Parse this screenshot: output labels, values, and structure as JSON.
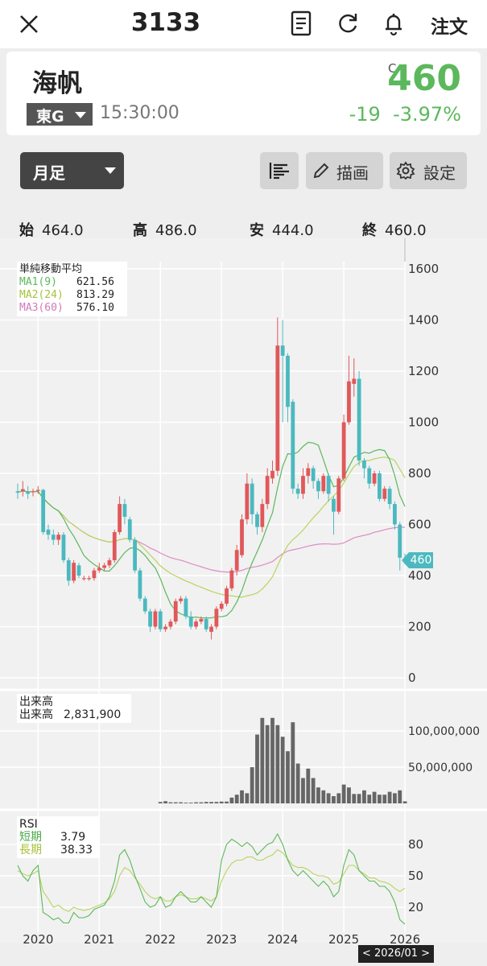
{
  "header": {
    "title": "3133",
    "order_label": "注文"
  },
  "stock": {
    "name": "海帆",
    "exchange": "東G",
    "time": "15:30:00",
    "c_mark": "C",
    "price": "460",
    "change": "-19",
    "change_pct": "-3.97%"
  },
  "toolbar": {
    "period": "月足",
    "draw_label": "描画",
    "settings_label": "設定"
  },
  "ohlc": {
    "open_label": "始",
    "open": "464.0",
    "high_label": "高",
    "high": "486.0",
    "low_label": "安",
    "low": "444.0",
    "close_label": "終",
    "close": "460.0"
  },
  "colors": {
    "up": "#e0585a",
    "down": "#4bb9bf",
    "ma1": "#5cb85c",
    "ma2": "#b8d45e",
    "ma3": "#e08ac6",
    "price": "#5cb85c"
  },
  "price_chart": {
    "legend_title": "単純移動平均",
    "ma1_label": "MA1(9)",
    "ma1_value": "621.56",
    "ma2_label": "MA2(24)",
    "ma2_value": "813.29",
    "ma3_label": "MA3(60)",
    "ma3_value": "576.10",
    "y_ticks": [
      "1600",
      "1400",
      "1200",
      "1000",
      "800",
      "600",
      "400",
      "200",
      "0"
    ],
    "price_tag": "460"
  },
  "volume_chart": {
    "legend_title": "出来高",
    "legend_label": "出来高",
    "legend_value": "2,831,900",
    "y_ticks": [
      "100,000,000",
      "50,000,000"
    ]
  },
  "rsi_chart": {
    "legend_title": "RSI",
    "short_label": "短期",
    "short_value": "3.79",
    "long_label": "長期",
    "long_value": "38.33",
    "y_ticks": [
      "80",
      "50",
      "20"
    ]
  },
  "x_axis": {
    "labels": [
      "2020",
      "2021",
      "2022",
      "2023",
      "2024",
      "2025",
      "2026"
    ],
    "cursor_label": "< 2026/01 >"
  },
  "chart_data": [
    {
      "type": "candlestick",
      "title": "単純移動平均",
      "ylim": [
        0,
        1600
      ],
      "x": [
        "2019-09",
        "2019-10",
        "2019-11",
        "2019-12",
        "2020-01",
        "2020-02",
        "2020-03",
        "2020-04",
        "2020-05",
        "2020-06",
        "2020-07",
        "2020-08",
        "2020-09",
        "2020-10",
        "2020-11",
        "2020-12",
        "2021-01",
        "2021-02",
        "2021-03",
        "2021-04",
        "2021-05",
        "2021-06",
        "2021-07",
        "2021-08",
        "2021-09",
        "2021-10",
        "2021-11",
        "2021-12",
        "2022-01",
        "2022-02",
        "2022-03",
        "2022-04",
        "2022-05",
        "2022-06",
        "2022-07",
        "2022-08",
        "2022-09",
        "2022-10",
        "2022-11",
        "2022-12",
        "2023-01",
        "2023-02",
        "2023-03",
        "2023-04",
        "2023-05",
        "2023-06",
        "2023-07",
        "2023-08",
        "2023-09",
        "2023-10",
        "2023-11",
        "2023-12",
        "2024-01",
        "2024-02",
        "2024-03",
        "2024-04",
        "2024-05",
        "2024-06",
        "2024-07",
        "2024-08",
        "2024-09",
        "2024-10",
        "2024-11",
        "2024-12",
        "2025-01",
        "2025-02",
        "2025-03",
        "2025-04",
        "2025-05",
        "2025-06",
        "2025-07",
        "2025-08",
        "2025-09",
        "2025-10",
        "2025-11",
        "2025-12",
        "2026-01"
      ],
      "open": [
        730,
        730,
        728,
        728,
        735,
        735,
        580,
        560,
        540,
        560,
        460,
        380,
        440,
        390,
        390,
        390,
        420,
        430,
        440,
        460,
        570,
        680,
        620,
        540,
        420,
        310,
        260,
        200,
        260,
        190,
        200,
        220,
        300,
        310,
        240,
        200,
        220,
        230,
        180,
        200,
        270,
        290,
        350,
        420,
        480,
        620,
        760,
        640,
        590,
        680,
        780,
        810,
        1300,
        1260,
        1080,
        740,
        720,
        790,
        820,
        770,
        730,
        790,
        700,
        650,
        780,
        1000,
        1150,
        1170,
        850,
        820,
        760,
        800,
        700,
        740,
        680,
        600,
        464
      ],
      "close": [
        725,
        738,
        720,
        730,
        735,
        570,
        560,
        540,
        560,
        460,
        380,
        450,
        400,
        390,
        390,
        420,
        430,
        440,
        460,
        570,
        680,
        630,
        540,
        420,
        310,
        260,
        200,
        260,
        190,
        200,
        220,
        300,
        310,
        240,
        200,
        220,
        230,
        190,
        200,
        270,
        290,
        350,
        420,
        500,
        620,
        760,
        640,
        590,
        680,
        790,
        810,
        1300,
        1260,
        1060,
        740,
        720,
        790,
        820,
        770,
        730,
        790,
        720,
        650,
        780,
        1000,
        1160,
        1170,
        850,
        820,
        760,
        800,
        700,
        740,
        680,
        600,
        470,
        460
      ],
      "high": [
        760,
        770,
        750,
        740,
        750,
        740,
        600,
        580,
        570,
        570,
        470,
        460,
        450,
        400,
        400,
        430,
        450,
        450,
        470,
        580,
        710,
        700,
        630,
        550,
        430,
        320,
        270,
        270,
        270,
        210,
        230,
        310,
        320,
        320,
        260,
        230,
        240,
        240,
        210,
        280,
        300,
        360,
        430,
        520,
        640,
        800,
        780,
        650,
        700,
        820,
        850,
        1410,
        1400,
        1270,
        1090,
        760,
        820,
        840,
        830,
        780,
        800,
        800,
        710,
        790,
        1030,
        1260,
        1250,
        1200,
        860,
        830,
        810,
        810,
        750,
        750,
        690,
        610,
        486
      ],
      "low": [
        700,
        710,
        700,
        710,
        720,
        560,
        540,
        520,
        520,
        450,
        360,
        370,
        390,
        380,
        380,
        380,
        410,
        420,
        430,
        450,
        560,
        600,
        530,
        410,
        300,
        250,
        180,
        190,
        180,
        180,
        190,
        210,
        290,
        230,
        190,
        190,
        210,
        180,
        150,
        190,
        260,
        280,
        340,
        400,
        470,
        600,
        600,
        560,
        570,
        660,
        760,
        790,
        1000,
        1000,
        720,
        700,
        700,
        760,
        740,
        700,
        720,
        690,
        560,
        640,
        770,
        990,
        1100,
        830,
        780,
        740,
        750,
        690,
        690,
        660,
        580,
        420,
        444
      ],
      "ma": [
        {
          "name": "MA1(9)",
          "last": 621.56
        },
        {
          "name": "MA2(24)",
          "last": 813.29
        },
        {
          "name": "MA3(60)",
          "last": 576.1
        }
      ]
    },
    {
      "type": "bar",
      "title": "出来高",
      "ylim": [
        0,
        130000000
      ],
      "x": [
        "2019-09",
        "2019-10",
        "2019-11",
        "2019-12",
        "2020-01",
        "2020-02",
        "2020-03",
        "2020-04",
        "2020-05",
        "2020-06",
        "2020-07",
        "2020-08",
        "2020-09",
        "2020-10",
        "2020-11",
        "2020-12",
        "2021-01",
        "2021-02",
        "2021-03",
        "2021-04",
        "2021-05",
        "2021-06",
        "2021-07",
        "2021-08",
        "2021-09",
        "2021-10",
        "2021-11",
        "2021-12",
        "2022-01",
        "2022-02",
        "2022-03",
        "2022-04",
        "2022-05",
        "2022-06",
        "2022-07",
        "2022-08",
        "2022-09",
        "2022-10",
        "2022-11",
        "2022-12",
        "2023-01",
        "2023-02",
        "2023-03",
        "2023-04",
        "2023-05",
        "2023-06",
        "2023-07",
        "2023-08",
        "2023-09",
        "2023-10",
        "2023-11",
        "2023-12",
        "2024-01",
        "2024-02",
        "2024-03",
        "2024-04",
        "2024-05",
        "2024-06",
        "2024-07",
        "2024-08",
        "2024-09",
        "2024-10",
        "2024-11",
        "2024-12",
        "2025-01",
        "2025-02",
        "2025-03",
        "2025-04",
        "2025-05",
        "2025-06",
        "2025-07",
        "2025-08",
        "2025-09",
        "2025-10",
        "2025-11",
        "2025-12",
        "2026-01"
      ],
      "values": [
        0,
        0,
        0,
        0,
        0,
        0,
        0,
        0,
        0,
        0,
        0,
        0,
        0,
        0,
        0,
        0,
        0,
        0,
        0,
        0,
        0,
        0,
        0,
        0,
        0,
        0,
        0,
        0,
        2000000,
        3000000,
        1500000,
        1500000,
        1500000,
        1000000,
        1000000,
        1500000,
        1500000,
        2000000,
        2000000,
        2000000,
        2500000,
        2500000,
        8000000,
        12000000,
        18000000,
        14000000,
        50000000,
        95000000,
        118000000,
        108000000,
        118000000,
        108000000,
        92000000,
        72000000,
        112000000,
        55000000,
        35000000,
        48000000,
        35000000,
        22000000,
        18000000,
        14000000,
        10000000,
        14000000,
        26000000,
        22000000,
        13000000,
        13000000,
        18000000,
        12000000,
        16000000,
        12000000,
        12000000,
        16000000,
        14000000,
        18000000,
        2831900
      ]
    },
    {
      "type": "line",
      "title": "RSI",
      "ylim": [
        0,
        100
      ],
      "x": [
        "2019-09",
        "2019-10",
        "2019-11",
        "2019-12",
        "2020-01",
        "2020-02",
        "2020-03",
        "2020-04",
        "2020-05",
        "2020-06",
        "2020-07",
        "2020-08",
        "2020-09",
        "2020-10",
        "2020-11",
        "2020-12",
        "2021-01",
        "2021-02",
        "2021-03",
        "2021-04",
        "2021-05",
        "2021-06",
        "2021-07",
        "2021-08",
        "2021-09",
        "2021-10",
        "2021-11",
        "2021-12",
        "2022-01",
        "2022-02",
        "2022-03",
        "2022-04",
        "2022-05",
        "2022-06",
        "2022-07",
        "2022-08",
        "2022-09",
        "2022-10",
        "2022-11",
        "2022-12",
        "2023-01",
        "2023-02",
        "2023-03",
        "2023-04",
        "2023-05",
        "2023-06",
        "2023-07",
        "2023-08",
        "2023-09",
        "2023-10",
        "2023-11",
        "2023-12",
        "2024-01",
        "2024-02",
        "2024-03",
        "2024-04",
        "2024-05",
        "2024-06",
        "2024-07",
        "2024-08",
        "2024-09",
        "2024-10",
        "2024-11",
        "2024-12",
        "2025-01",
        "2025-02",
        "2025-03",
        "2025-04",
        "2025-05",
        "2025-06",
        "2025-07",
        "2025-08",
        "2025-09",
        "2025-10",
        "2025-11",
        "2025-12",
        "2026-01"
      ],
      "series": [
        {
          "name": "短期",
          "values": [
            60,
            50,
            45,
            55,
            60,
            15,
            12,
            8,
            10,
            5,
            5,
            15,
            10,
            10,
            12,
            18,
            20,
            22,
            30,
            45,
            70,
            75,
            65,
            50,
            38,
            25,
            20,
            22,
            30,
            20,
            22,
            30,
            35,
            30,
            25,
            25,
            30,
            25,
            20,
            30,
            65,
            80,
            85,
            82,
            78,
            82,
            78,
            70,
            75,
            80,
            82,
            90,
            80,
            65,
            55,
            50,
            55,
            50,
            45,
            40,
            45,
            40,
            30,
            35,
            60,
            75,
            70,
            55,
            50,
            45,
            45,
            40,
            40,
            35,
            25,
            8,
            3.79
          ]
        },
        {
          "name": "長期",
          "values": [
            55,
            52,
            50,
            52,
            55,
            35,
            28,
            20,
            22,
            18,
            16,
            20,
            18,
            17,
            18,
            20,
            22,
            24,
            28,
            35,
            50,
            58,
            55,
            48,
            42,
            35,
            30,
            28,
            30,
            26,
            26,
            30,
            32,
            30,
            28,
            28,
            30,
            28,
            26,
            30,
            45,
            55,
            62,
            65,
            65,
            68,
            68,
            65,
            65,
            68,
            70,
            75,
            72,
            66,
            60,
            58,
            58,
            56,
            52,
            50,
            50,
            48,
            42,
            44,
            52,
            60,
            60,
            55,
            52,
            48,
            48,
            45,
            44,
            42,
            38,
            35,
            38.33
          ]
        }
      ]
    }
  ]
}
